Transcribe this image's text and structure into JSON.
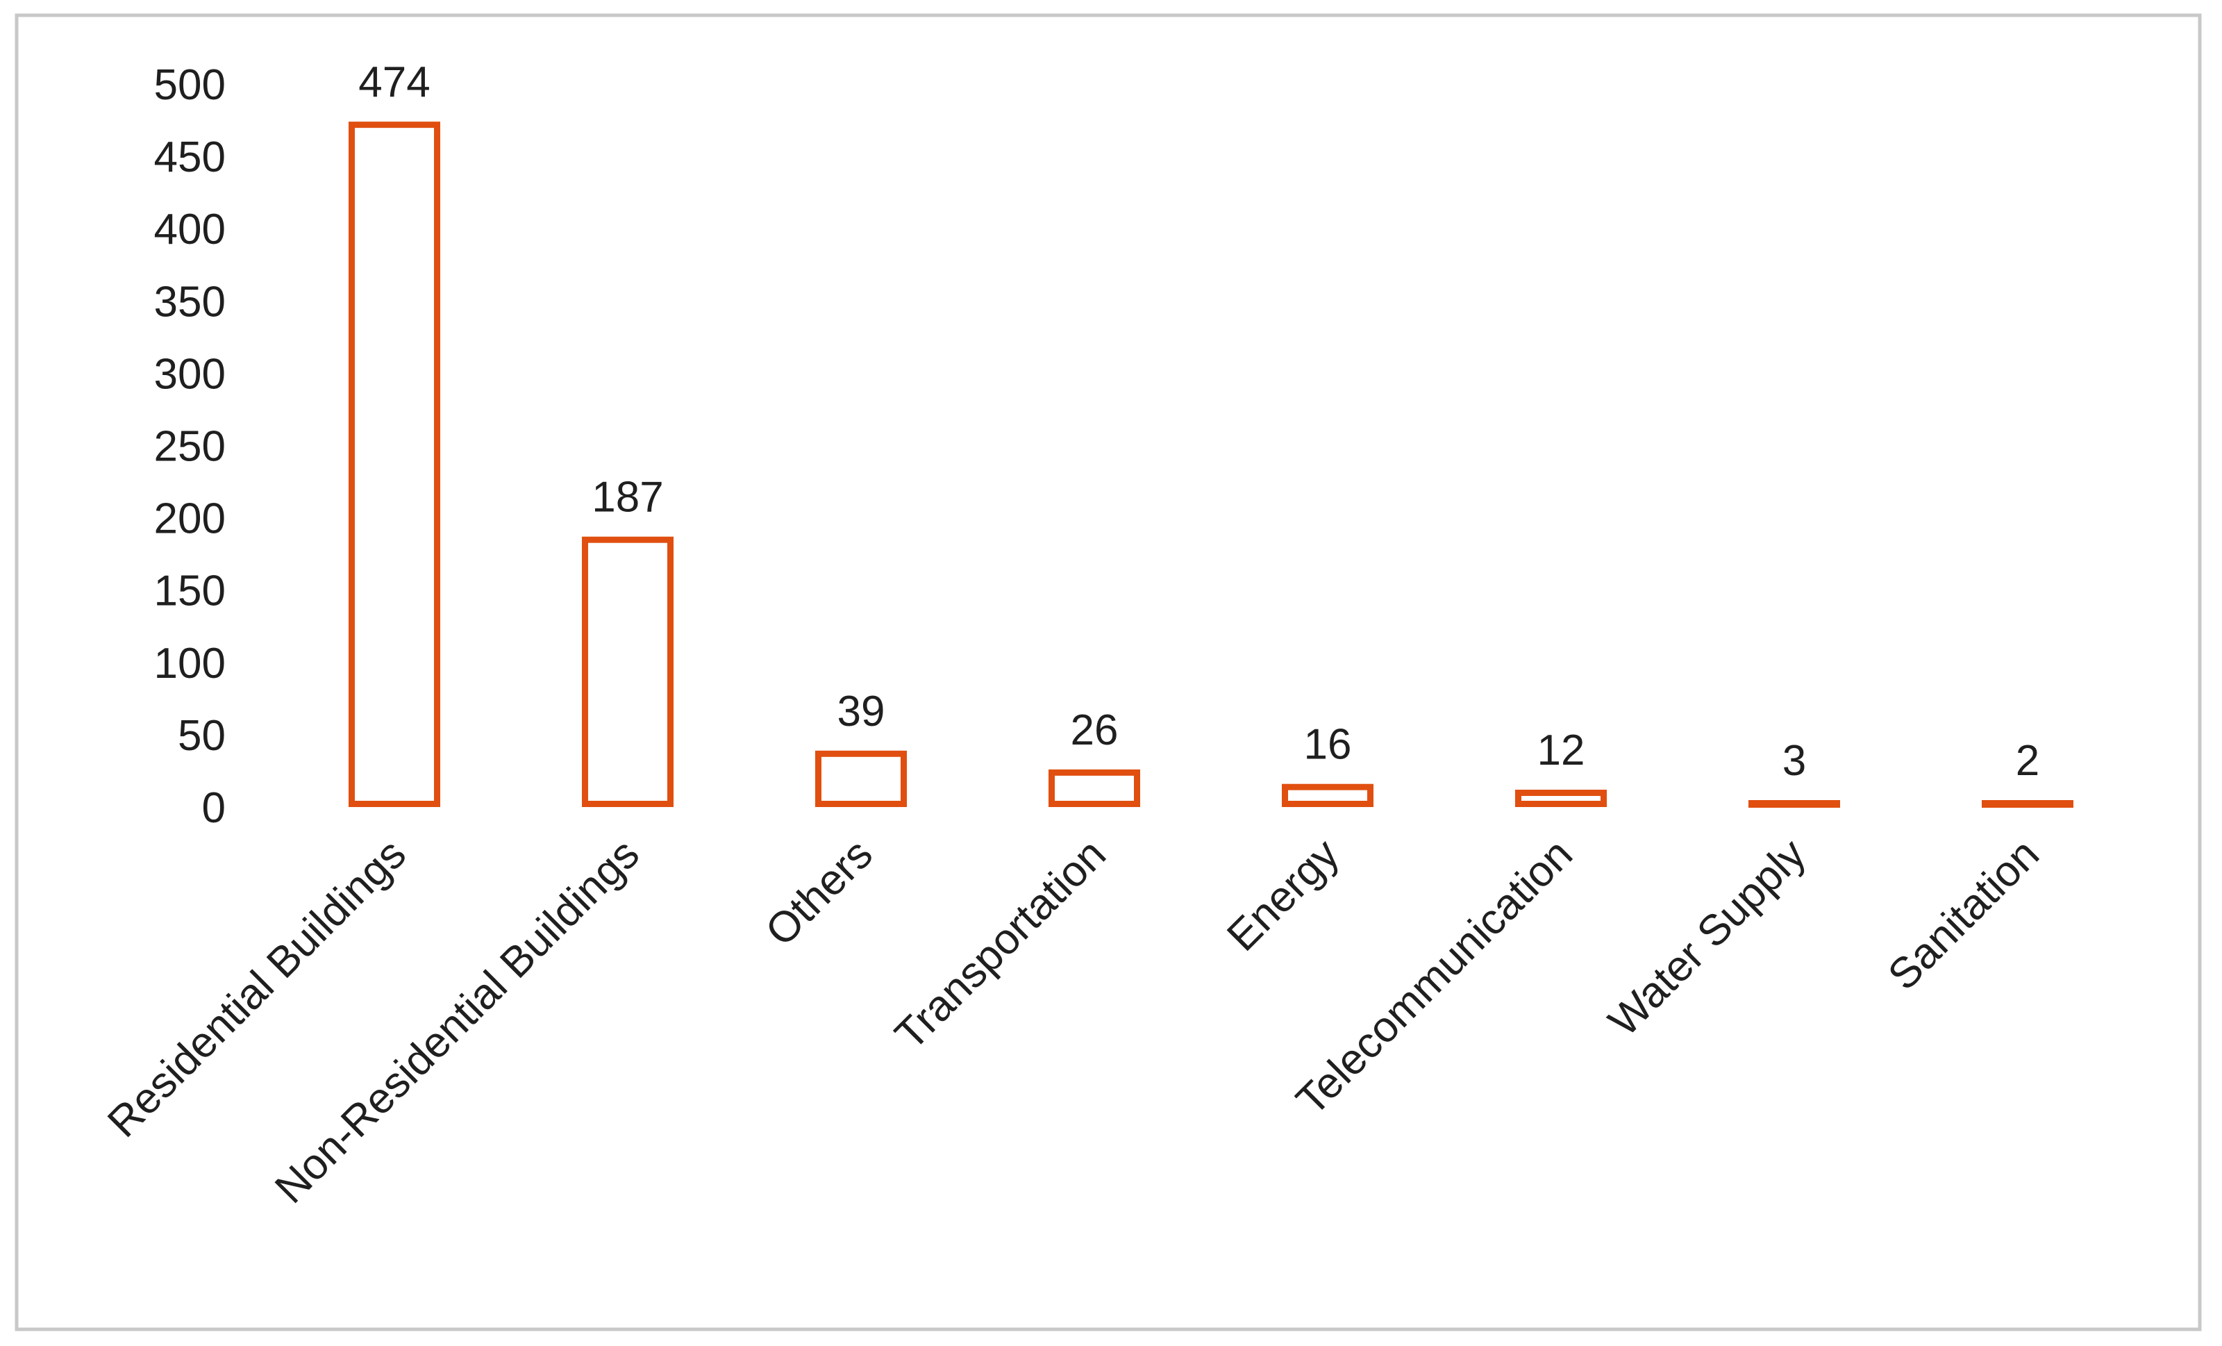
{
  "chart_data": {
    "type": "bar",
    "title": "",
    "xlabel": "",
    "ylabel": "",
    "categories": [
      "Residential Buildings",
      "Non-Residential Buildings",
      "Others",
      "Transportation",
      "Energy",
      "Telecommunication",
      "Water Supply",
      "Sanitation"
    ],
    "values": [
      474,
      187,
      39,
      26,
      16,
      12,
      3,
      2
    ],
    "data_labels": [
      "474",
      "187",
      "39",
      "26",
      "16",
      "12",
      "3",
      "2"
    ],
    "ylim": [
      0,
      500
    ],
    "yticks": [
      "0",
      "50",
      "100",
      "150",
      "200",
      "250",
      "300",
      "350",
      "400",
      "450",
      "500"
    ],
    "grid": false,
    "legend": "none",
    "bar_style": "outlined",
    "colors": {
      "bar_stroke": "#E04F10",
      "bar_fill": "#FFFFFF",
      "text": "#1F1F1F",
      "frame": "#C8C8C8"
    }
  }
}
